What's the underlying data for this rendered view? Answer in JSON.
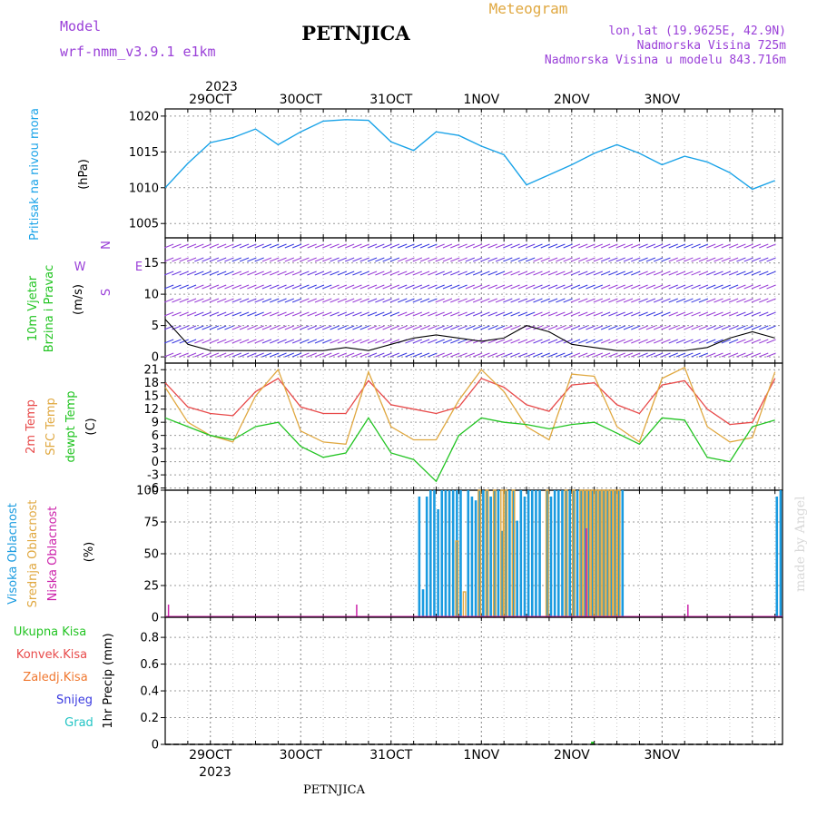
{
  "header": {
    "model_label": "Model",
    "model_name": "wrf-nmm_v3.9.1  e1km",
    "station": "PETNJICA",
    "meteogram_label": "Meteogram",
    "lonlat": "lon,lat (19.9625E, 42.9N)",
    "elevation": "Nadmorska Visina 725m",
    "model_elevation": "Nadmorska Visina u modelu 843.716m",
    "year_top": "2023",
    "year_bottom": "2023",
    "footer_station": "PETNJICA",
    "watermark": "made by Angel"
  },
  "colors": {
    "pressure": "#1aa3e8",
    "temp2m": "#e84a4a",
    "sfc": "#e0a840",
    "dewpt": "#22c422",
    "high_cloud": "#1a9be0",
    "mid_cloud": "#e0a840",
    "low_cloud": "#cc22aa",
    "purple": "#9a40d8",
    "green": "#22c422",
    "red": "#e84a4a",
    "orange": "#f07830",
    "blue": "#3a3ae0",
    "cyan": "#22c4c4"
  },
  "chart_data": [
    {
      "type": "line",
      "panel": "pressure",
      "ylabel_lines": [
        "Pritisak na nivou mora",
        "(hPa)"
      ],
      "yticks": [
        1005,
        1010,
        1015,
        1020
      ],
      "ylim": [
        1003,
        1021
      ],
      "x_day_labels": [
        "29OCT",
        "30OCT",
        "31OCT",
        "1NOV",
        "2NOV",
        "3NOV"
      ],
      "x_hours": [
        0,
        6,
        12,
        18,
        24,
        30,
        36,
        42,
        48,
        54,
        60,
        66,
        72,
        78,
        84,
        90,
        96,
        102,
        108,
        114,
        120,
        126,
        132,
        138,
        144,
        150,
        156,
        162
      ],
      "series": [
        {
          "values": [
            1010.0,
            1013.4,
            1016.3,
            1017.0,
            1018.2,
            1016.0,
            1017.8,
            1019.3,
            1019.5,
            1019.4,
            1016.4,
            1015.2,
            1017.8,
            1017.3,
            1015.8,
            1014.6,
            1010.4,
            1011.8,
            1013.2,
            1014.8,
            1016.0,
            1014.8,
            1013.2,
            1014.4,
            1013.6,
            1012.1,
            1009.8,
            1011.0
          ]
        }
      ]
    },
    {
      "type": "line",
      "panel": "wind",
      "ylabel_lines": [
        "10m Vjetar",
        "Brzina i Pravac",
        "(m/s)"
      ],
      "direction_legend": [
        "N",
        "W",
        "E",
        "S"
      ],
      "yticks": [
        0,
        5,
        10,
        15
      ],
      "ylim": [
        -1,
        19
      ],
      "x_hours": [
        0,
        6,
        12,
        18,
        24,
        30,
        36,
        42,
        48,
        54,
        60,
        66,
        72,
        78,
        84,
        90,
        96,
        102,
        108,
        114,
        120,
        126,
        132,
        138,
        144,
        150,
        156,
        162
      ],
      "series": [
        {
          "values": [
            6.0,
            2.0,
            1.0,
            1.0,
            1.0,
            1.0,
            1.0,
            1.0,
            1.5,
            1.0,
            2.0,
            3.0,
            3.5,
            3.0,
            2.5,
            3.0,
            5.0,
            4.0,
            2.0,
            1.5,
            1.0,
            1.0,
            1.0,
            1.0,
            1.5,
            3.0,
            4.0,
            3.0
          ]
        }
      ]
    },
    {
      "type": "line",
      "panel": "temperature",
      "ylabel_lines": [
        "2m Temp",
        "SFC Temp",
        "dewpt Temp",
        "(C)"
      ],
      "yticks": [
        -6,
        -3,
        0,
        3,
        6,
        9,
        12,
        15,
        18,
        21
      ],
      "ylim": [
        -6.5,
        22.5
      ],
      "x_hours": [
        0,
        6,
        12,
        18,
        24,
        30,
        36,
        42,
        48,
        54,
        60,
        66,
        72,
        78,
        84,
        90,
        96,
        102,
        108,
        114,
        120,
        126,
        132,
        138,
        144,
        150,
        156,
        162
      ],
      "series": [
        {
          "name": "2m Temp",
          "values": [
            18.0,
            12.5,
            11.0,
            10.5,
            16.0,
            19.0,
            12.5,
            11.0,
            11.0,
            18.5,
            13.0,
            12.0,
            11.0,
            12.5,
            19.0,
            17.0,
            13.0,
            11.5,
            17.5,
            18.0,
            13.0,
            11.0,
            17.5,
            18.5,
            12.0,
            8.5,
            9.0,
            19.0
          ]
        },
        {
          "name": "SFC Temp",
          "values": [
            17.0,
            9.0,
            6.0,
            4.5,
            15.0,
            21.0,
            7.0,
            4.5,
            4.0,
            20.5,
            8.0,
            5.0,
            5.0,
            14.0,
            21.0,
            16.0,
            8.0,
            5.0,
            20.0,
            19.5,
            8.0,
            4.5,
            19.0,
            21.5,
            8.0,
            4.5,
            5.5,
            20.5
          ]
        },
        {
          "name": "dewpt Temp",
          "values": [
            10.0,
            8.0,
            6.0,
            5.0,
            8.0,
            9.0,
            3.5,
            1.0,
            2.0,
            10.0,
            2.0,
            0.5,
            -4.5,
            6.0,
            10.0,
            9.0,
            8.5,
            7.5,
            8.5,
            9.0,
            6.5,
            4.0,
            10.0,
            9.5,
            1.0,
            0.0,
            8.0,
            9.5
          ]
        }
      ]
    },
    {
      "type": "bar",
      "panel": "cloud_cover",
      "ylabel_lines": [
        "Visoka Oblacnost",
        "Srednja Oblacnost",
        "Niska Oblacnost",
        "(%)"
      ],
      "yticks": [
        0,
        25,
        50,
        75,
        100
      ],
      "ylim": [
        0,
        100
      ],
      "series": [
        {
          "name": "Visoka Oblacnost",
          "x": [
            67.5,
            68.5,
            69.5,
            70.5,
            71.5,
            72.5,
            73.5,
            74.5,
            75.5,
            76.5,
            77.5,
            78.5,
            80.5,
            81.5,
            82.5,
            83.5,
            84.5,
            85.5,
            86.5,
            87.5,
            88.5,
            89.5,
            90.5,
            91.5,
            92.5,
            93.5,
            94.5,
            95.5,
            96.5,
            97.5,
            98.5,
            99.5,
            101.5,
            102.5,
            103.5,
            104.5,
            105.5,
            106.5,
            107.5,
            108.5,
            109.5,
            110.5,
            111.5,
            112.5,
            113.5,
            114.5,
            115.5,
            116.5,
            117.5,
            118.5,
            119.5,
            120.5,
            121.5,
            162.5,
            163.5
          ],
          "values": [
            95,
            22,
            95,
            100,
            100,
            85,
            100,
            100,
            100,
            100,
            100,
            100,
            100,
            95,
            92,
            100,
            100,
            100,
            95,
            100,
            100,
            68,
            100,
            100,
            100,
            76,
            100,
            95,
            100,
            100,
            100,
            100,
            100,
            95,
            100,
            100,
            100,
            100,
            100,
            100,
            100,
            100,
            100,
            100,
            100,
            100,
            100,
            100,
            100,
            100,
            100,
            100,
            100,
            95,
            100
          ]
        },
        {
          "name": "Srednja Oblacnost",
          "x": [
            77.5,
            79.5,
            83.5,
            85.5,
            87.5,
            89.5,
            90.5,
            92.5,
            101.5,
            106.5,
            108.5,
            110.5,
            111.5,
            112.5,
            113.5,
            114.5,
            115.5,
            116.5,
            117.5,
            118.5,
            119.5,
            120.5
          ],
          "values": [
            60,
            20,
            100,
            100,
            100,
            100,
            100,
            100,
            100,
            100,
            100,
            100,
            100,
            100,
            100,
            100,
            100,
            100,
            100,
            100,
            100,
            100
          ]
        },
        {
          "name": "Niska Oblacnost",
          "x": [
            1.0,
            51.0,
            112.0,
            139.0
          ],
          "values": [
            10,
            10,
            70,
            10
          ]
        }
      ]
    },
    {
      "type": "bar",
      "panel": "precipitation",
      "ylabel_lines": [
        "1hr Precip (mm)"
      ],
      "legend": [
        "Ukupna Kisa",
        "Konvek.Kisa",
        "Zaledj.Kisa",
        "Snijeg",
        "Grad"
      ],
      "yticks": [
        0,
        0.2,
        0.4,
        0.6,
        0.8
      ],
      "ylim": [
        0,
        0.95
      ],
      "series": [
        {
          "name": "Ukupna Kisa",
          "x": [
            113.5
          ],
          "values": [
            0.02
          ]
        }
      ]
    }
  ]
}
